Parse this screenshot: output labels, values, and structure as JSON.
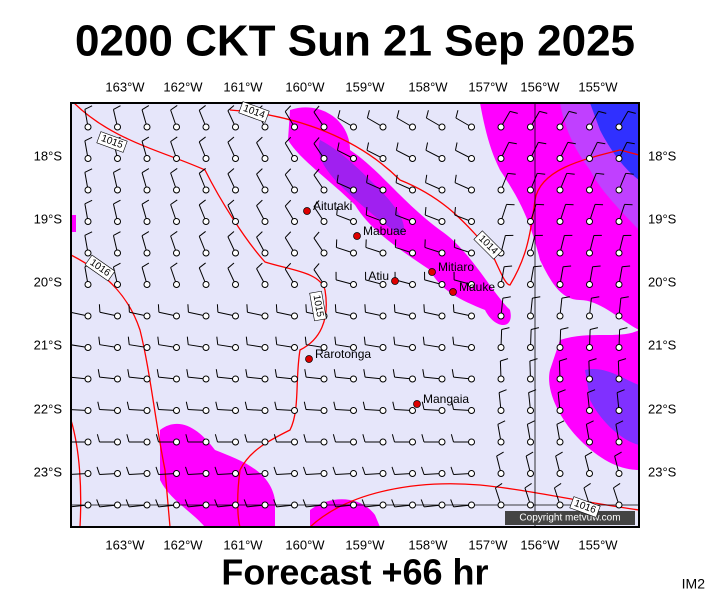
{
  "title": "0200 CKT Sun 21 Sep 2025",
  "footer": "Forecast +66 hr",
  "corner": "IM2",
  "copyright": "Copyright metvuw.com",
  "longitudes": [
    "163°W",
    "162°W",
    "161°W",
    "160°W",
    "159°W",
    "158°W",
    "157°W",
    "156°W",
    "155°W"
  ],
  "latitudes": [
    "18°S",
    "19°S",
    "20°S",
    "21°S",
    "22°S",
    "23°S"
  ],
  "places": [
    "Aitutaki",
    "Mabuae",
    "Atiu",
    "Mitiaro",
    "Mauke",
    "Rarotonga",
    "Mangaia"
  ],
  "isobars": [
    "1014",
    "1015",
    "1016",
    "1015",
    "1014",
    "1016"
  ]
}
